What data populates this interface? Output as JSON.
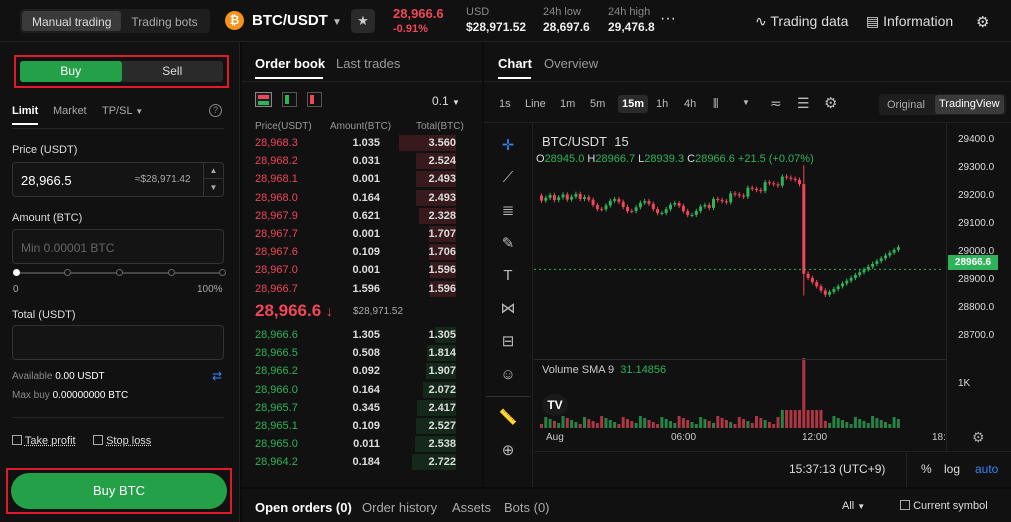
{
  "top": {
    "modes": [
      "Manual trading",
      "Trading bots"
    ],
    "coin_glyph": "₿",
    "pair": "BTC/USDT",
    "last_price": "28,966.6",
    "change_pct": "-0.91%",
    "usd_label": "USD",
    "usd_value": "$28,971.52",
    "low_label": "24h low",
    "low_value": "28,697.6",
    "high_label": "24h high",
    "high_value": "29,476.8",
    "more": "···",
    "trading_data": "Trading data",
    "information": "Information"
  },
  "order_form": {
    "buy": "Buy",
    "sell": "Sell",
    "types": [
      "Limit",
      "Market",
      "TP/SL"
    ],
    "price_label": "Price (USDT)",
    "price_value": "28,966.5",
    "price_usd": "≈$28,971.42",
    "amount_label": "Amount (BTC)",
    "amount_placeholder": "Min 0.00001 BTC",
    "slider_min": "0",
    "slider_max": "100%",
    "slider_pct": 0,
    "total_label": "Total (USDT)",
    "available_label": "Available",
    "available_value": "0.00 USDT",
    "maxbuy_label": "Max buy",
    "maxbuy_value": "0.00000000 BTC",
    "take_profit": "Take profit",
    "stop_loss": "Stop loss",
    "submit": "Buy BTC"
  },
  "order_book": {
    "tabs": [
      "Order book",
      "Last trades"
    ],
    "precision": "0.1",
    "headers": [
      "Price(USDT)",
      "Amount(BTC)",
      "Total(BTC)"
    ],
    "asks": [
      {
        "price": "28,968.3",
        "amount": "1.035",
        "total": "3.560"
      },
      {
        "price": "28,968.2",
        "amount": "0.031",
        "total": "2.524"
      },
      {
        "price": "28,968.1",
        "amount": "0.001",
        "total": "2.493"
      },
      {
        "price": "28,968.0",
        "amount": "0.164",
        "total": "2.493"
      },
      {
        "price": "28,967.9",
        "amount": "0.621",
        "total": "2.328"
      },
      {
        "price": "28,967.7",
        "amount": "0.001",
        "total": "1.707"
      },
      {
        "price": "28,967.6",
        "amount": "0.109",
        "total": "1.706"
      },
      {
        "price": "28,967.0",
        "amount": "0.001",
        "total": "1.596"
      },
      {
        "price": "28,966.7",
        "amount": "1.596",
        "total": "1.596"
      }
    ],
    "mid_price": "28,966.6",
    "mid_arrow": "↓",
    "mid_usd": "$28,971.52",
    "bids": [
      {
        "price": "28,966.6",
        "amount": "1.305",
        "total": "1.305"
      },
      {
        "price": "28,966.5",
        "amount": "0.508",
        "total": "1.814"
      },
      {
        "price": "28,966.2",
        "amount": "0.092",
        "total": "1.907"
      },
      {
        "price": "28,966.0",
        "amount": "0.164",
        "total": "2.072"
      },
      {
        "price": "28,965.7",
        "amount": "0.345",
        "total": "2.417"
      },
      {
        "price": "28,965.1",
        "amount": "0.109",
        "total": "2.527"
      },
      {
        "price": "28,965.0",
        "amount": "0.011",
        "total": "2.538"
      },
      {
        "price": "28,964.2",
        "amount": "0.184",
        "total": "2.722"
      }
    ]
  },
  "chart": {
    "tabs": [
      "Chart",
      "Overview"
    ],
    "timeframes": [
      "1s",
      "Line",
      "1m",
      "5m",
      "15m",
      "1h",
      "4h"
    ],
    "active_timeframe": "15m",
    "views": [
      "Original",
      "TradingView"
    ],
    "symbol": "BTC/USDT",
    "interval": "15",
    "ohlc": {
      "o_label": "O",
      "o": "28945.0",
      "h_label": "H",
      "h": "28966.7",
      "l_label": "L",
      "l": "28939.3",
      "c_label": "C",
      "c": "28966.6",
      "chg": "+21.5 (+0.07%)"
    },
    "y_ticks": [
      "29400.0",
      "29300.0",
      "29200.0",
      "29100.0",
      "29000.0",
      "28900.0",
      "28800.0",
      "28700.0"
    ],
    "current_label": "28966.6",
    "volume_label": "Volume SMA 9",
    "volume_value": "31.14856",
    "volume_tick": "1K",
    "x_ticks": [
      "Aug",
      "06:00",
      "12:00",
      "18:"
    ],
    "clock": "15:37:13 (UTC+9)",
    "pct": "%",
    "log": "log",
    "auto": "auto",
    "tv_logo": "TV"
  },
  "bottom": {
    "tabs": [
      "Open orders (0)",
      "Order history",
      "Assets",
      "Bots (0)"
    ],
    "filter": "All",
    "current_symbol": "Current symbol"
  },
  "colors": {
    "up": "#2fb35a",
    "down": "#f0465a",
    "accent": "#24a148",
    "highlight": "#e0192c"
  }
}
